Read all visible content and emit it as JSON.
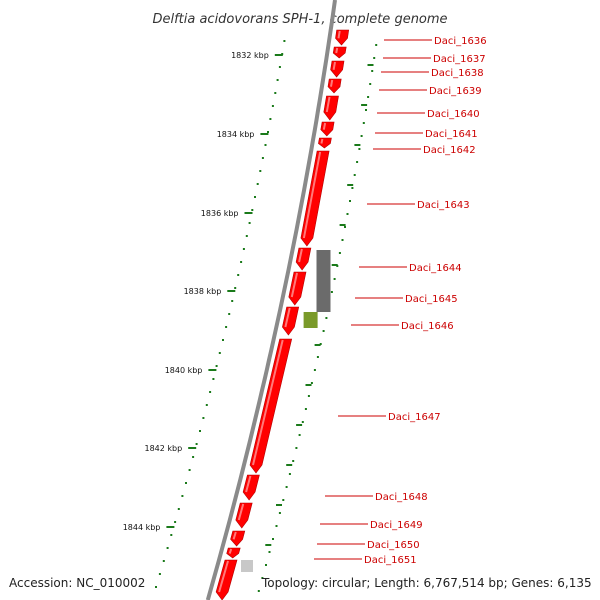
{
  "title": "Delftia acidovorans SPH-1, complete genome",
  "footer": {
    "accession": "Accession: NC_010002",
    "topology": "Topology: circular; Length: 6,767,514 bp; Genes: 6,135"
  },
  "colors": {
    "gene": "#ff0000",
    "gene_dark": "#b30000",
    "gray_feature": "#6b6b6b",
    "green_feature": "#7a9a2a",
    "light_gray_feature": "#c8c8c8",
    "backbone": "#8a8a8a",
    "tick": "#1a7a1a",
    "label": "#cc0000"
  },
  "scale_labels": [
    "1832 kbp",
    "1834 kbp",
    "1836 kbp",
    "1838 kbp",
    "1840 kbp",
    "1842 kbp",
    "1844 kbp"
  ],
  "genes": [
    "Daci_1636",
    "Daci_1637",
    "Daci_1638",
    "Daci_1639",
    "Daci_1640",
    "Daci_1641",
    "Daci_1642",
    "Daci_1643",
    "Daci_1644",
    "Daci_1645",
    "Daci_1646",
    "Daci_1647",
    "Daci_1648",
    "Daci_1649",
    "Daci_1650",
    "Daci_1651"
  ]
}
